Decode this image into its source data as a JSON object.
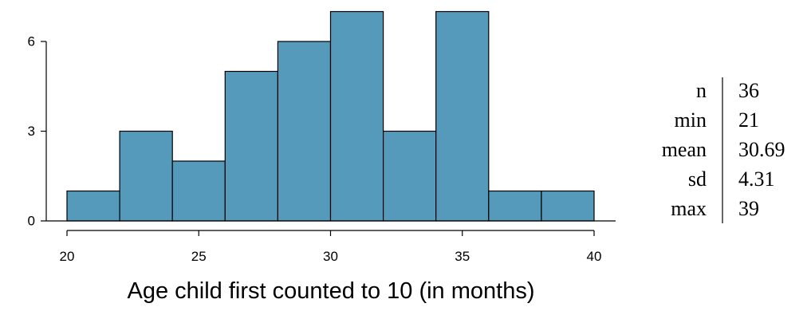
{
  "chart_data": {
    "type": "bar",
    "bins": [
      {
        "from": 20,
        "to": 22,
        "count": 1
      },
      {
        "from": 22,
        "to": 24,
        "count": 3
      },
      {
        "from": 24,
        "to": 26,
        "count": 2
      },
      {
        "from": 26,
        "to": 28,
        "count": 5
      },
      {
        "from": 28,
        "to": 30,
        "count": 6
      },
      {
        "from": 30,
        "to": 32,
        "count": 7
      },
      {
        "from": 32,
        "to": 34,
        "count": 3
      },
      {
        "from": 34,
        "to": 36,
        "count": 7
      },
      {
        "from": 36,
        "to": 38,
        "count": 1
      },
      {
        "from": 38,
        "to": 40,
        "count": 1
      }
    ],
    "xlabel": "Age child first counted to 10 (in months)",
    "ylabel": "",
    "title": "",
    "xlim": [
      20,
      40
    ],
    "ylim": [
      0,
      7
    ],
    "x_ticks": [
      "20",
      "25",
      "30",
      "35",
      "40"
    ],
    "y_ticks": [
      "0",
      "3",
      "6"
    ],
    "grid": false,
    "bar_color": "#5599bb"
  },
  "summary_stats": [
    {
      "label": "n",
      "value": "36"
    },
    {
      "label": "min",
      "value": "21"
    },
    {
      "label": "mean",
      "value": "30.69"
    },
    {
      "label": "sd",
      "value": "4.31"
    },
    {
      "label": "max",
      "value": "39"
    }
  ]
}
